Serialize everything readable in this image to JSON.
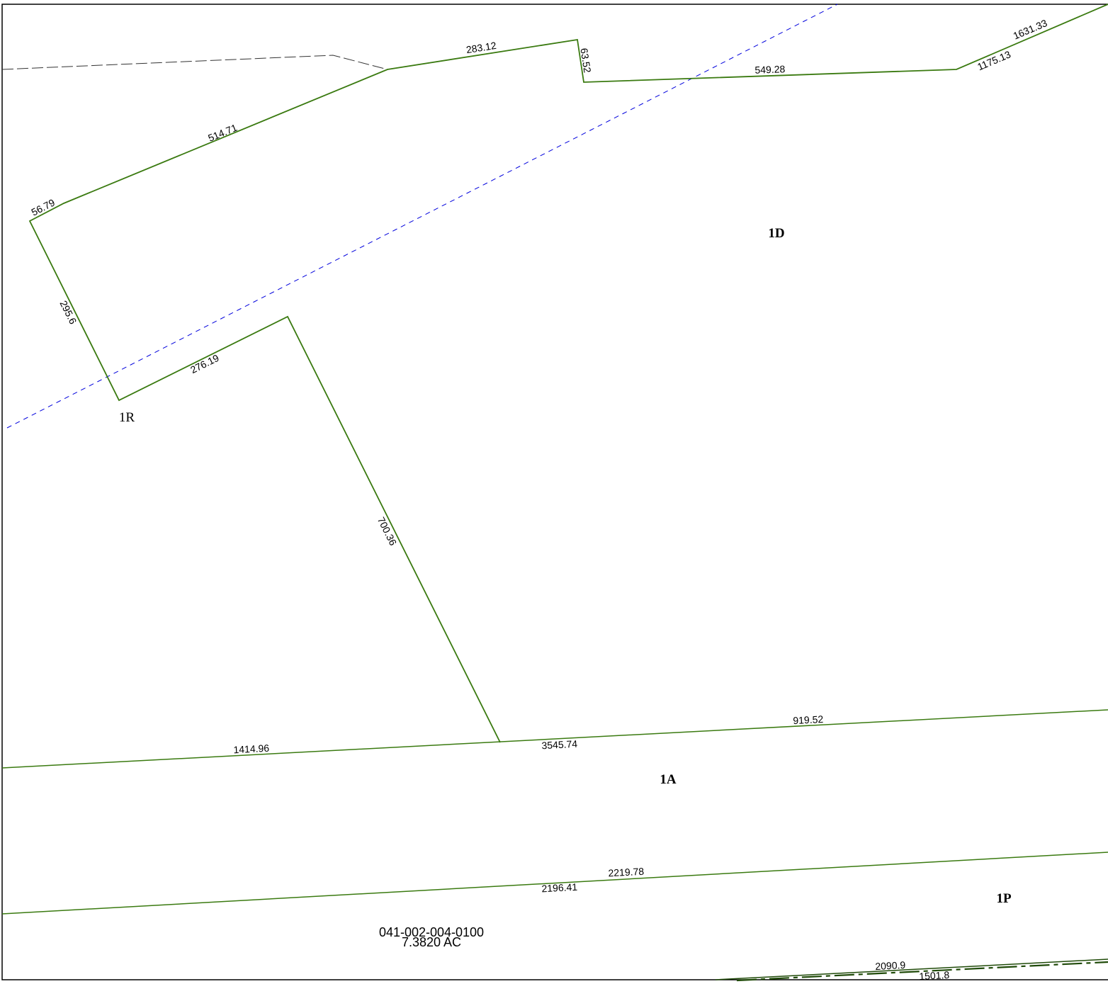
{
  "parcels": {
    "p1d": "1D",
    "p1r": "1R",
    "p1a": "1A",
    "p1p": "1P"
  },
  "parcel_info": {
    "id": "041-002-004-0100",
    "area": "7.3820 AC"
  },
  "dimensions": {
    "d283": "283.12",
    "d6352": "63.52",
    "d549": "549.28",
    "d1631": "1631.33",
    "d1175": "1175.13",
    "d514": "514.71",
    "d5679": "56.79",
    "d2956": "295.6",
    "d276": "276.19",
    "d700": "700.36",
    "d919": "919.52",
    "d1414": "1414.96",
    "d3545": "3545.74",
    "d2219": "2219.78",
    "d2196": "2196.41",
    "d2090": "2090.9",
    "d1501": "1501.8"
  },
  "colors": {
    "boundary": "#3a7a10",
    "easement": "#0000dd",
    "old_line": "#333333",
    "frame": "#000000"
  }
}
